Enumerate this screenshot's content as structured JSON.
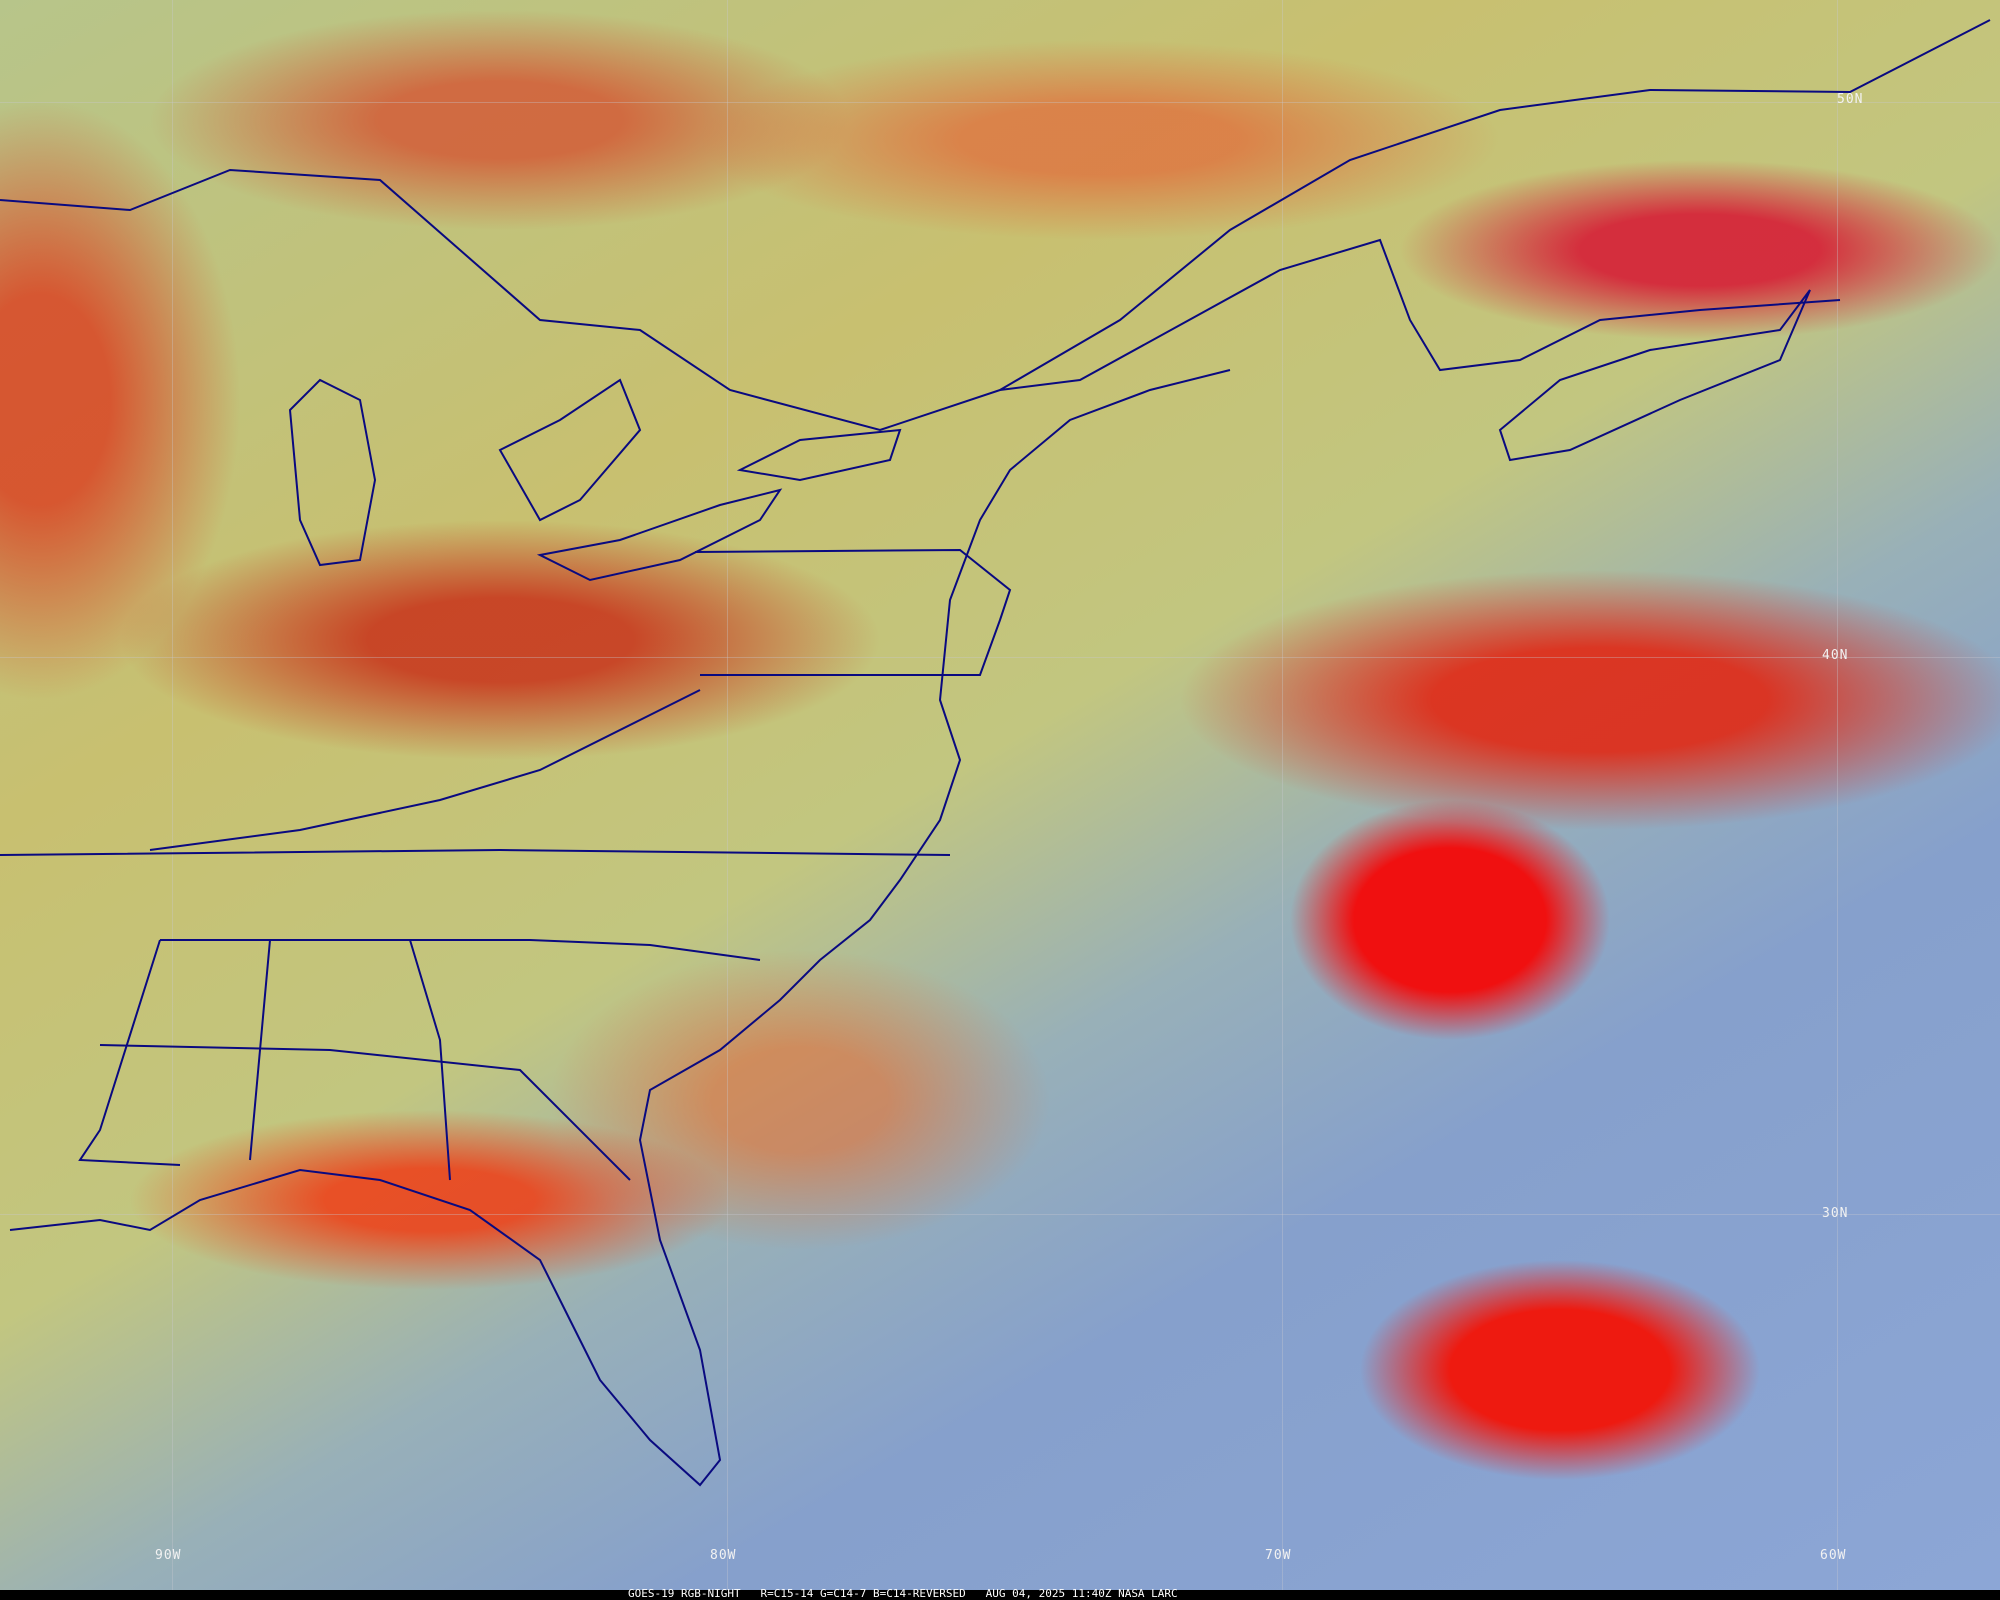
{
  "caption": "GOES-19 RGB-NIGHT   R=C15-14 G=C14-7 B=C14-REVERSED   AUG 04, 2025 11:40Z NASA LARC",
  "latitude_labels": [
    "50N",
    "40N",
    "30N"
  ],
  "longitude_labels": [
    "90W",
    "80W",
    "70W",
    "60W"
  ],
  "colors": {
    "land_clear": "#c8c070",
    "ocean_clear": "#86a0cc",
    "deep_cloud": "#f01010",
    "mid_cloud": "#e87030",
    "boundaries": "#0a0a80"
  }
}
